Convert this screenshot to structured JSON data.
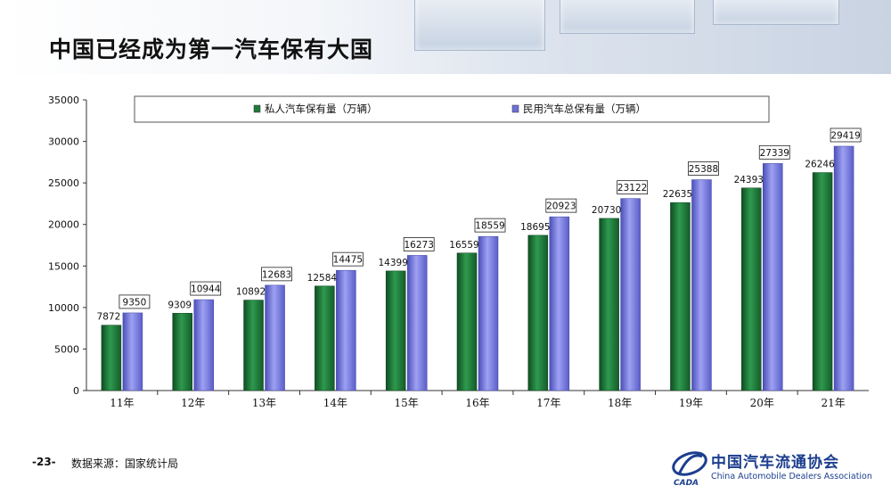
{
  "header": {
    "title": "中国已经成为第一汽车保有大国"
  },
  "footer": {
    "page": "-23-",
    "source": "数据来源：国家统计局"
  },
  "logo": {
    "name_cn": "中国汽车流通协会",
    "name_en": "China Automobile Dealers Association",
    "abbr": "CADA"
  },
  "colors": {
    "private": "#1f7a3c",
    "total": "#7b7fe0",
    "header_bg": "#d3dce8",
    "logo_blue": "#1c3e8f"
  },
  "chart_data": {
    "type": "bar",
    "title": "",
    "xlabel": "",
    "ylabel": "",
    "categories": [
      "11年",
      "12年",
      "13年",
      "14年",
      "15年",
      "16年",
      "17年",
      "18年",
      "19年",
      "20年",
      "21年"
    ],
    "series": [
      {
        "name": "私人汽车保有量（万辆）",
        "values": [
          7872,
          9309,
          10892,
          12584,
          14399,
          16559,
          18695,
          20730,
          22635,
          24393,
          26246
        ]
      },
      {
        "name": "民用汽车总保有量（万辆）",
        "values": [
          9350,
          10944,
          12683,
          14475,
          16273,
          18559,
          20923,
          23122,
          25388,
          27339,
          29419
        ]
      }
    ],
    "ylim": [
      0,
      35000
    ],
    "yticks": [
      "0",
      "5000",
      "10000",
      "15000",
      "20000",
      "25000",
      "30000",
      "35000"
    ],
    "legend_position": "top",
    "grid": false
  }
}
